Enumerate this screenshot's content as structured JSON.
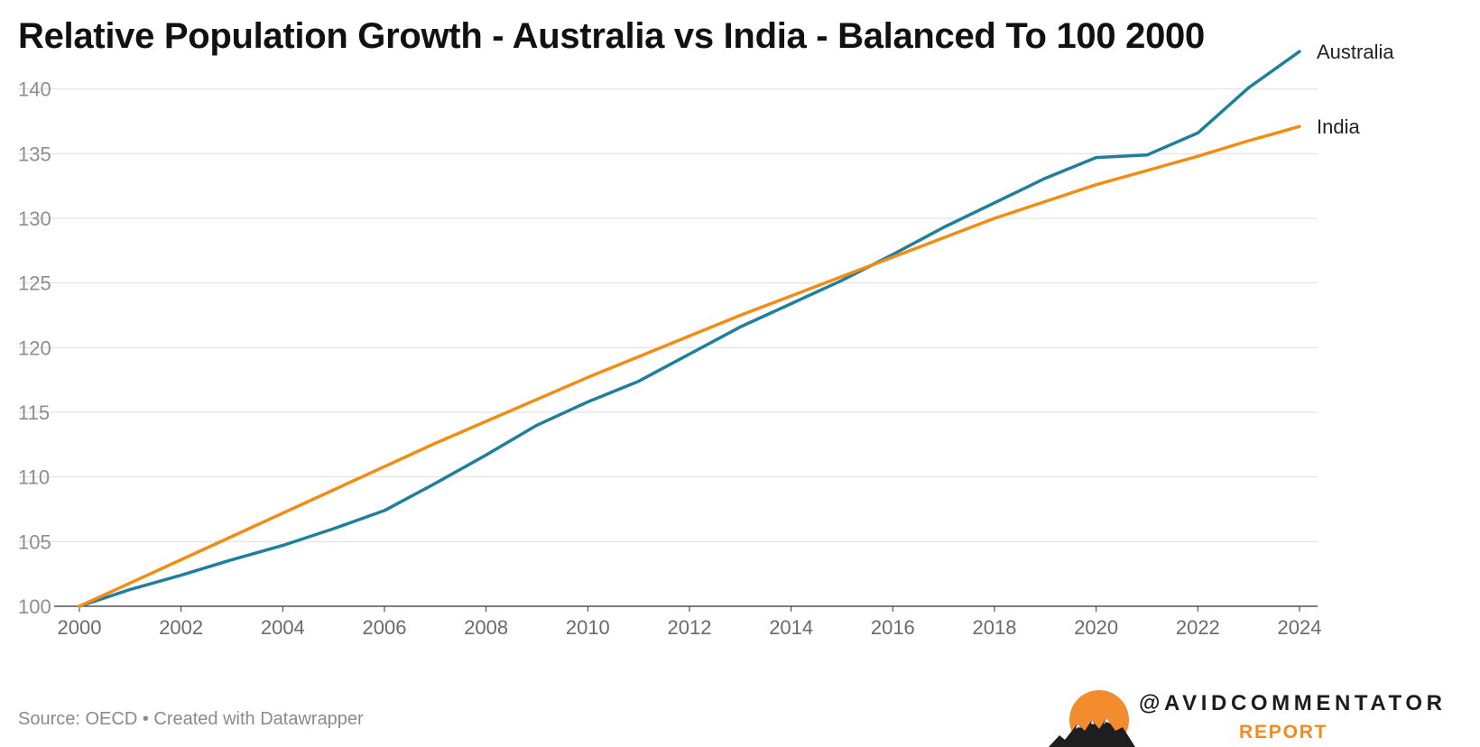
{
  "chart_data": {
    "type": "line",
    "title": "Relative Population Growth - Australia vs India - Balanced To 100 2000",
    "xlabel": "",
    "ylabel": "",
    "x": [
      2000,
      2001,
      2002,
      2003,
      2004,
      2005,
      2006,
      2007,
      2008,
      2009,
      2010,
      2011,
      2012,
      2013,
      2014,
      2015,
      2016,
      2017,
      2018,
      2019,
      2020,
      2021,
      2022,
      2023,
      2024
    ],
    "xticks": [
      "2000",
      "2002",
      "2004",
      "2006",
      "2008",
      "2010",
      "2012",
      "2014",
      "2016",
      "2018",
      "2020",
      "2022",
      "2024"
    ],
    "yticks": [
      "100",
      "105",
      "110",
      "115",
      "120",
      "125",
      "130",
      "135",
      "140"
    ],
    "xlim": [
      2000,
      2024
    ],
    "ylim": [
      100,
      142
    ],
    "grid": true,
    "series": [
      {
        "name": "Australia",
        "color": "#1f7f9c",
        "values": [
          100,
          101.3,
          102.4,
          103.6,
          104.7,
          106.0,
          107.4,
          109.5,
          111.7,
          114.0,
          115.8,
          117.4,
          119.5,
          121.6,
          123.4,
          125.2,
          127.2,
          129.3,
          131.2,
          133.1,
          134.7,
          134.9,
          136.6,
          140.1,
          142.9
        ]
      },
      {
        "name": "India",
        "color": "#f28c13",
        "values": [
          100,
          101.8,
          103.6,
          105.4,
          107.2,
          109.0,
          110.8,
          112.6,
          114.3,
          116.0,
          117.7,
          119.3,
          120.9,
          122.5,
          124.0,
          125.5,
          127.0,
          128.5,
          130.0,
          131.3,
          132.6,
          133.7,
          134.8,
          136.0,
          137.1
        ]
      }
    ]
  },
  "footer": {
    "source": "Source: OECD • Created with Datawrapper"
  },
  "logo": {
    "handle": "@AVIDCOMMENTATOR",
    "subtitle": "REPORT",
    "sun_color": "#f28c2e",
    "mountain_color": "#1e1e1e"
  }
}
